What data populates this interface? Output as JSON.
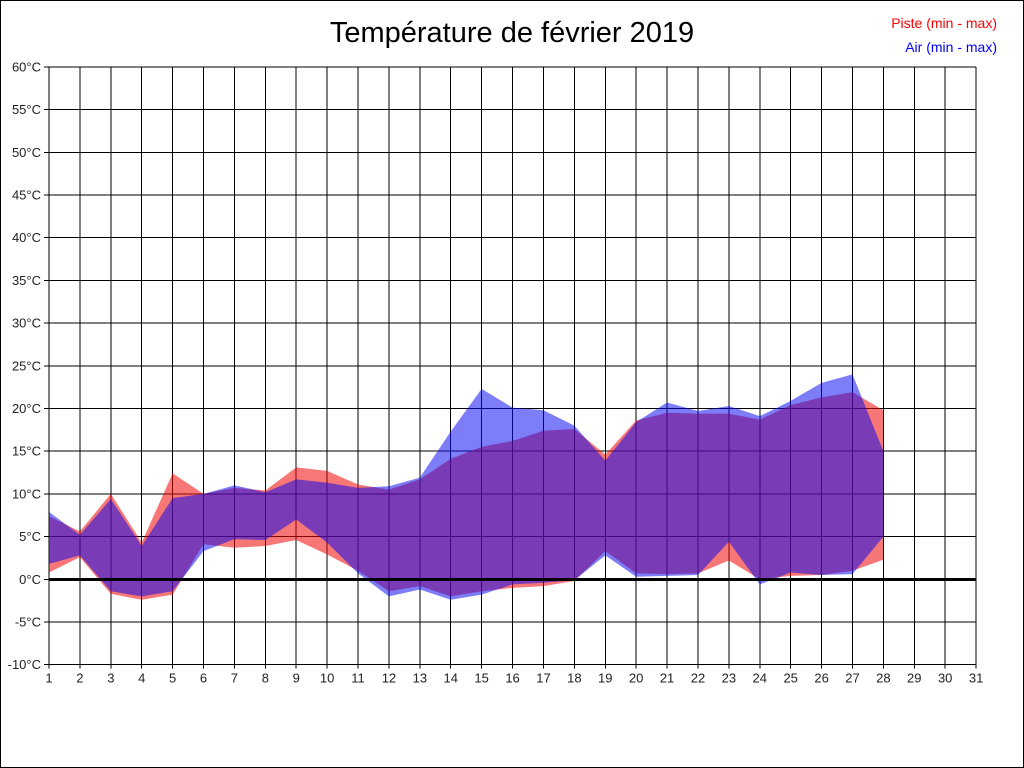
{
  "page": {
    "background": "#ffffff",
    "border_color": "#000000"
  },
  "header": {
    "title": "Température de février 2019"
  },
  "legend": [
    {
      "label": "Piste (min - max)",
      "color": "#ff0000"
    },
    {
      "label": "Air (min - max)",
      "color": "#0000ff"
    }
  ],
  "chart_data": {
    "type": "area",
    "title": "Température de février 2019",
    "xlabel": "",
    "ylabel": "°C",
    "xlim": [
      1,
      31
    ],
    "ylim": [
      -10,
      60
    ],
    "x_tick_step": 1,
    "y_tick_step": 5,
    "y_tick_suffix": "°C",
    "grid": true,
    "grid_color": "#000000",
    "zero_line": true,
    "zero_line_width": 3,
    "legend_position": "top-right",
    "x": [
      1,
      2,
      3,
      4,
      5,
      6,
      7,
      8,
      9,
      10,
      11,
      12,
      13,
      14,
      15,
      16,
      17,
      18,
      19,
      20,
      21,
      22,
      23,
      24,
      25,
      26,
      27,
      28
    ],
    "series": [
      {
        "name": "Piste (min - max)",
        "legend_color": "#ff0000",
        "fill": "rgba(240,5,5,0.55)",
        "min": [
          0.8,
          2.6,
          -1.7,
          -2.4,
          -1.8,
          4.1,
          3.7,
          3.9,
          4.6,
          2.9,
          1.0,
          -1.4,
          -0.8,
          -2.0,
          -1.4,
          -1.0,
          -0.8,
          -0.2,
          3.3,
          0.7,
          0.6,
          0.7,
          2.2,
          0.0,
          0.4,
          0.5,
          1.0,
          2.3
        ],
        "max": [
          7.4,
          5.6,
          10.0,
          4.3,
          12.4,
          10.0,
          10.7,
          10.4,
          13.1,
          12.7,
          11.1,
          10.5,
          11.7,
          14.1,
          15.5,
          16.2,
          17.4,
          17.6,
          14.6,
          18.6,
          19.5,
          19.4,
          19.4,
          18.7,
          20.4,
          21.3,
          21.9,
          19.8
        ]
      },
      {
        "name": "Air (min - max)",
        "legend_color": "#0000ff",
        "fill": "rgba(10,10,240,0.53)",
        "min": [
          1.8,
          2.8,
          -1.4,
          -2.0,
          -1.4,
          3.3,
          4.7,
          4.6,
          7.0,
          4.3,
          0.7,
          -2.0,
          -1.2,
          -2.4,
          -1.8,
          -0.6,
          -0.4,
          -0.1,
          2.8,
          0.3,
          0.4,
          0.5,
          4.4,
          -0.6,
          0.8,
          0.5,
          0.6,
          5.0
        ],
        "max": [
          7.9,
          5.2,
          9.4,
          3.9,
          9.5,
          10.0,
          11.0,
          10.2,
          11.7,
          11.3,
          10.7,
          10.9,
          11.9,
          17.3,
          22.3,
          20.1,
          19.8,
          18.0,
          13.9,
          18.4,
          20.7,
          19.7,
          20.3,
          19.1,
          20.9,
          23.0,
          24.0,
          15.0
        ]
      }
    ]
  }
}
